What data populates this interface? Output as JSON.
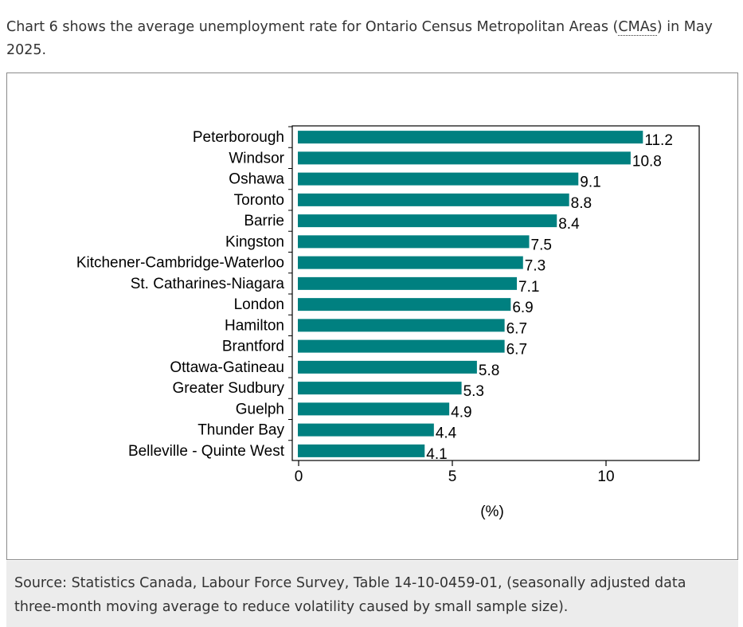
{
  "intro": {
    "text_before": "Chart 6 shows the average unemployment rate for Ontario Census Metropolitan Areas (",
    "abbr": "CMAs",
    "text_after": ") in May 2025."
  },
  "chart_data": {
    "type": "bar",
    "orientation": "horizontal",
    "categories": [
      "Peterborough",
      "Windsor",
      "Oshawa",
      "Toronto",
      "Barrie",
      "Kingston",
      "Kitchener-Cambridge-Waterloo",
      "St. Catharines-Niagara",
      "London",
      "Hamilton",
      "Brantford",
      "Ottawa-Gatineau",
      "Greater Sudbury",
      "Guelph",
      "Thunder Bay",
      "Belleville - Quinte West"
    ],
    "values": [
      11.2,
      10.8,
      9.1,
      8.8,
      8.4,
      7.5,
      7.3,
      7.1,
      6.9,
      6.7,
      6.7,
      5.8,
      5.3,
      4.9,
      4.4,
      4.1
    ],
    "value_labels": [
      "11.2",
      "10.8",
      "9.1",
      "8.8",
      "8.4",
      "7.5",
      "7.3",
      "7.1",
      "6.9",
      "6.7",
      "6.7",
      "5.8",
      "5.3",
      "4.9",
      "4.4",
      "4.1"
    ],
    "x_ticks": [
      0,
      5,
      10
    ],
    "x_tick_labels": [
      "0",
      "5",
      "10"
    ],
    "xlim": [
      0,
      13
    ],
    "xlabel": "(%)",
    "ylabel": "",
    "title": "",
    "bar_color": "#008080",
    "grid": false,
    "legend": false
  },
  "source": {
    "text": "Source: Statistics Canada, Labour Force Survey, Table 14-10-0459-01, (seasonally adjusted data three-month moving average to reduce volatility caused by small sample size)."
  }
}
